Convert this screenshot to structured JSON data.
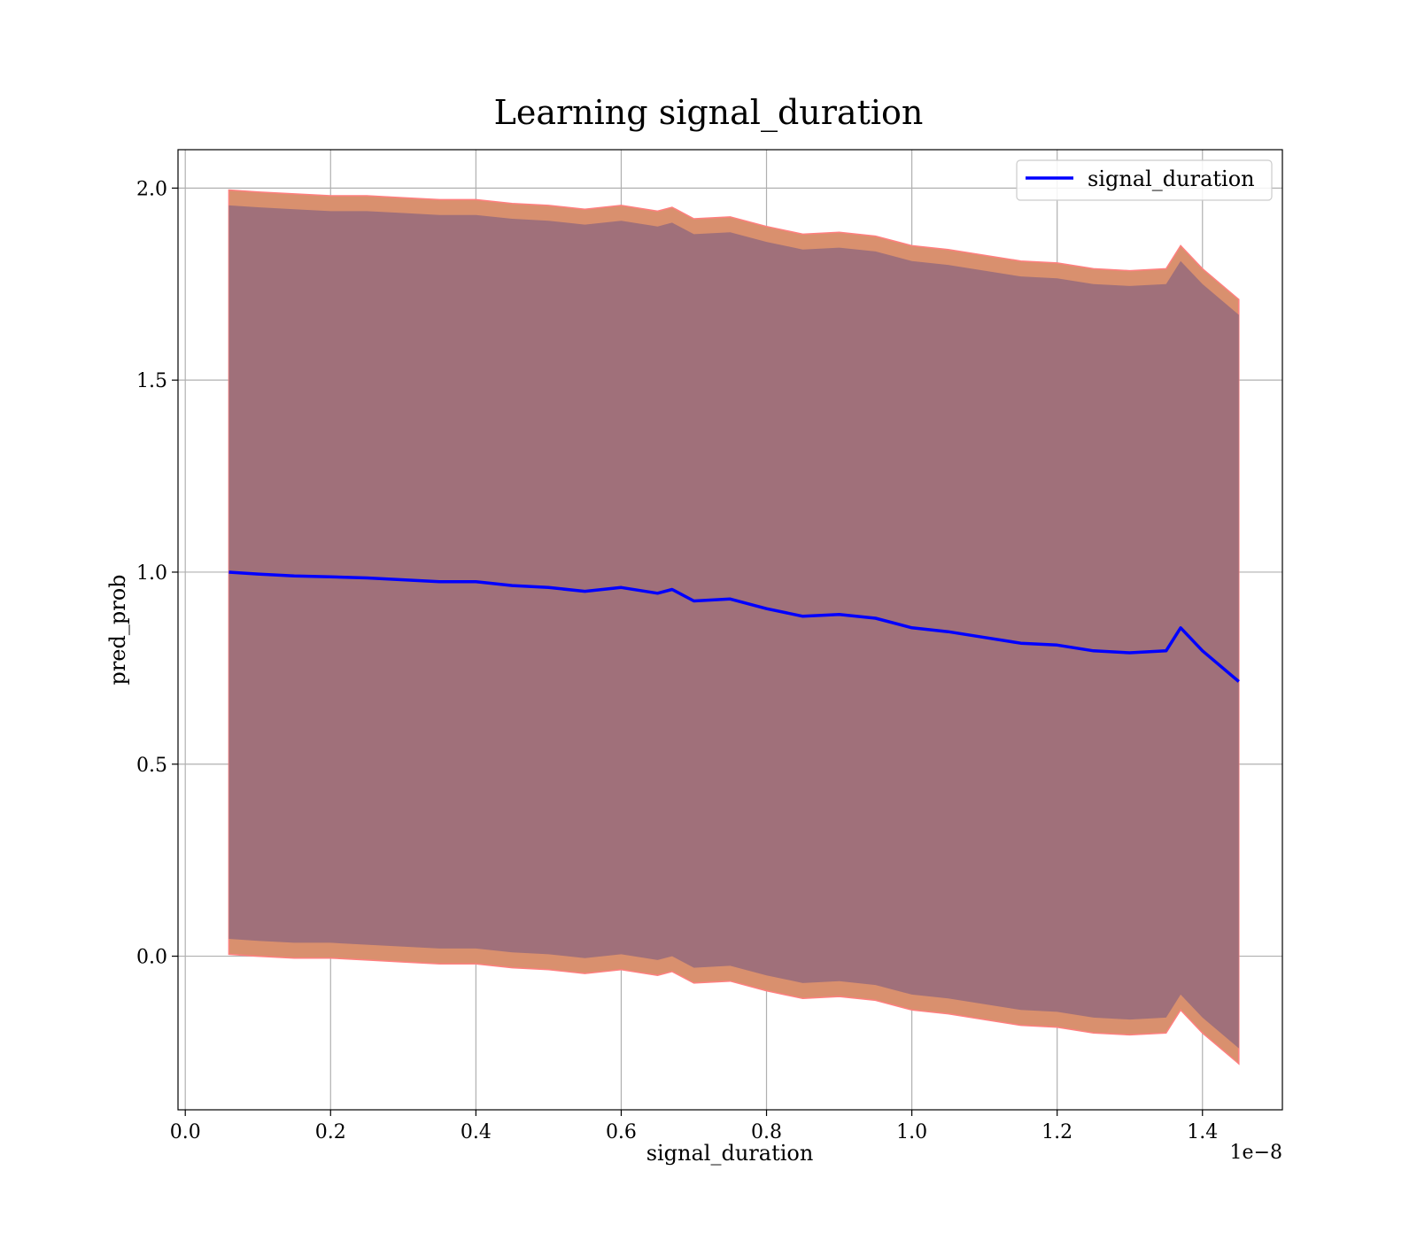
{
  "chart_data": {
    "type": "line",
    "title": "Learning signal_duration",
    "xlabel": "signal_duration",
    "ylabel": "pred_prob",
    "x_offset_text": "1e−8",
    "xlim": [
      -0.01,
      1.51
    ],
    "ylim": [
      -0.4,
      2.1
    ],
    "xticks": [
      0.0,
      0.2,
      0.4,
      0.6,
      0.8,
      1.0,
      1.2,
      1.4
    ],
    "xtick_labels": [
      "0.0",
      "0.2",
      "0.4",
      "0.6",
      "0.8",
      "1.0",
      "1.2",
      "1.4"
    ],
    "yticks": [
      0.0,
      0.5,
      1.0,
      1.5,
      2.0
    ],
    "ytick_labels": [
      "0.0",
      "0.5",
      "1.0",
      "1.5",
      "2.0"
    ],
    "grid": true,
    "legend_position": "top-right",
    "series": [
      {
        "name": "signal_duration",
        "color": "#0000ff",
        "x": [
          0.06,
          0.1,
          0.15,
          0.2,
          0.25,
          0.3,
          0.35,
          0.4,
          0.45,
          0.5,
          0.55,
          0.6,
          0.65,
          0.67,
          0.7,
          0.75,
          0.8,
          0.85,
          0.9,
          0.95,
          1.0,
          1.05,
          1.1,
          1.15,
          1.2,
          1.25,
          1.3,
          1.35,
          1.37,
          1.4,
          1.45
        ],
        "y": [
          1.0,
          0.995,
          0.99,
          0.988,
          0.985,
          0.98,
          0.975,
          0.975,
          0.965,
          0.96,
          0.95,
          0.96,
          0.945,
          0.955,
          0.925,
          0.93,
          0.905,
          0.885,
          0.89,
          0.88,
          0.855,
          0.845,
          0.83,
          0.815,
          0.81,
          0.795,
          0.79,
          0.795,
          0.855,
          0.795,
          0.715
        ]
      }
    ],
    "bands": [
      {
        "name": "outer",
        "color": "#d9906e",
        "edge_color": "#ff7f7f",
        "upper": [
          1.995,
          1.99,
          1.985,
          1.98,
          1.98,
          1.975,
          1.97,
          1.97,
          1.96,
          1.955,
          1.945,
          1.955,
          1.94,
          1.95,
          1.92,
          1.925,
          1.9,
          1.88,
          1.885,
          1.875,
          1.85,
          1.84,
          1.825,
          1.81,
          1.805,
          1.79,
          1.785,
          1.79,
          1.85,
          1.79,
          1.71
        ],
        "lower": [
          0.005,
          0.0,
          -0.005,
          -0.005,
          -0.01,
          -0.015,
          -0.02,
          -0.02,
          -0.03,
          -0.035,
          -0.045,
          -0.035,
          -0.05,
          -0.04,
          -0.07,
          -0.065,
          -0.09,
          -0.11,
          -0.105,
          -0.115,
          -0.14,
          -0.15,
          -0.165,
          -0.18,
          -0.185,
          -0.2,
          -0.205,
          -0.2,
          -0.14,
          -0.2,
          -0.28
        ]
      },
      {
        "name": "inner",
        "color": "#a0707a",
        "upper": [
          1.955,
          1.95,
          1.945,
          1.94,
          1.94,
          1.935,
          1.93,
          1.93,
          1.92,
          1.915,
          1.905,
          1.915,
          1.9,
          1.91,
          1.88,
          1.885,
          1.86,
          1.84,
          1.845,
          1.835,
          1.81,
          1.8,
          1.785,
          1.77,
          1.765,
          1.75,
          1.745,
          1.75,
          1.81,
          1.75,
          1.67
        ],
        "lower": [
          0.045,
          0.04,
          0.035,
          0.035,
          0.03,
          0.025,
          0.02,
          0.02,
          0.01,
          0.005,
          -0.005,
          0.005,
          -0.01,
          0.0,
          -0.03,
          -0.025,
          -0.05,
          -0.07,
          -0.065,
          -0.075,
          -0.1,
          -0.11,
          -0.125,
          -0.14,
          -0.145,
          -0.16,
          -0.165,
          -0.16,
          -0.1,
          -0.16,
          -0.24
        ]
      }
    ]
  }
}
